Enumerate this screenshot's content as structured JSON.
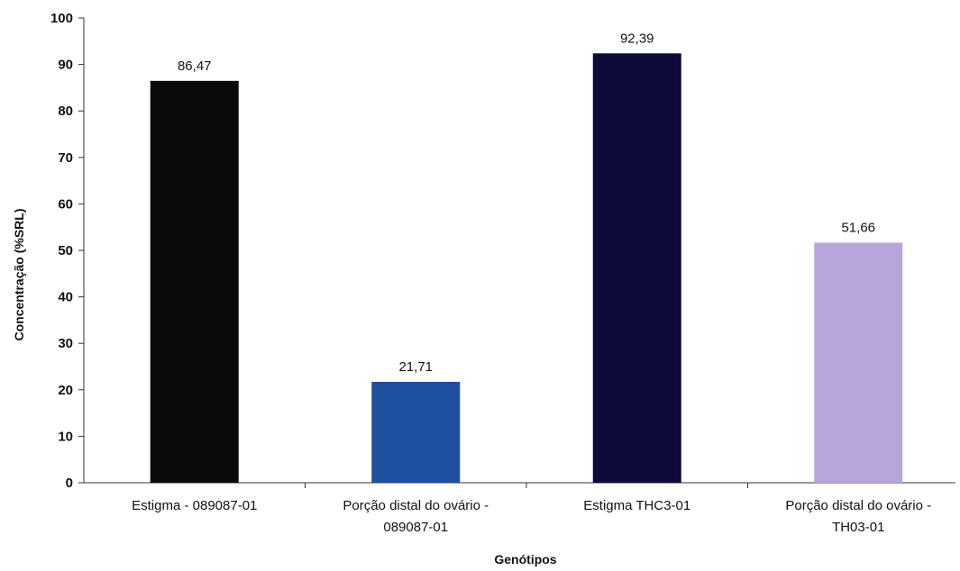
{
  "chart_data": {
    "type": "bar",
    "categories": [
      [
        "Estigma - 089087-01"
      ],
      [
        "Porção distal do ovário -",
        "089087-01"
      ],
      [
        "Estigma THC3-01"
      ],
      [
        "Porção distal do ovário -",
        "TH03-01"
      ]
    ],
    "values": [
      86.47,
      21.71,
      92.39,
      51.66
    ],
    "value_labels": [
      "86,47",
      "21,71",
      "92,39",
      "51,66"
    ],
    "colors": [
      "#0a0a0a",
      "#1f4f9f",
      "#0d0a3a",
      "#b9a6d8"
    ],
    "xlabel": "Genótipos",
    "ylabel": "Concentração (%SRL)",
    "ylim": [
      0,
      100
    ],
    "yticks": [
      0,
      10,
      20,
      30,
      40,
      50,
      60,
      70,
      80,
      90,
      100
    ],
    "grid": false,
    "legend": "none"
  }
}
